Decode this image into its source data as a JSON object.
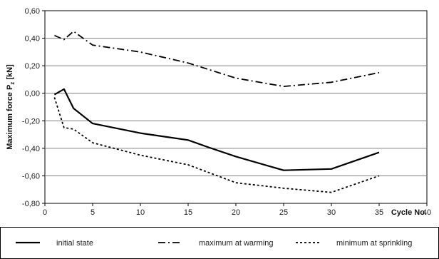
{
  "chart_data": {
    "type": "line",
    "xlabel": "Cycle No.",
    "ylabel": "Maximum force P",
    "ylabel_sub": "z",
    "ylabel_unit": "[kN]",
    "xlim": [
      0,
      40
    ],
    "ylim": [
      -0.8,
      0.6
    ],
    "xticks": [
      "0",
      "5",
      "10",
      "15",
      "20",
      "25",
      "30",
      "35",
      "40"
    ],
    "yticks": [
      "0,60",
      "0,40",
      "0,20",
      "0,00",
      "-0,20",
      "-0,40",
      "-0,60",
      "-0,80"
    ],
    "grid": "horizontal",
    "legend_position": "bottom",
    "series": [
      {
        "name": "initial state",
        "style": "solid",
        "points": [
          [
            1,
            -0.01
          ],
          [
            2,
            0.03
          ],
          [
            3,
            -0.11
          ],
          [
            5,
            -0.22
          ],
          [
            10,
            -0.29
          ],
          [
            15,
            -0.34
          ],
          [
            17,
            -0.39
          ],
          [
            20,
            -0.46
          ],
          [
            25,
            -0.56
          ],
          [
            30,
            -0.55
          ],
          [
            35,
            -0.43
          ]
        ]
      },
      {
        "name": "maximum at warming",
        "style": "dashdot",
        "points": [
          [
            1,
            0.42
          ],
          [
            2,
            0.39
          ],
          [
            3,
            0.45
          ],
          [
            4,
            0.4
          ],
          [
            5,
            0.35
          ],
          [
            10,
            0.3
          ],
          [
            15,
            0.22
          ],
          [
            20,
            0.11
          ],
          [
            25,
            0.05
          ],
          [
            30,
            0.08
          ],
          [
            35,
            0.15
          ]
        ]
      },
      {
        "name": "minimum at sprinkling",
        "style": "dotted",
        "points": [
          [
            1,
            -0.03
          ],
          [
            2,
            -0.25
          ],
          [
            3,
            -0.26
          ],
          [
            5,
            -0.36
          ],
          [
            10,
            -0.45
          ],
          [
            15,
            -0.52
          ],
          [
            20,
            -0.65
          ],
          [
            25,
            -0.69
          ],
          [
            30,
            -0.72
          ],
          [
            35,
            -0.6
          ]
        ]
      }
    ]
  }
}
